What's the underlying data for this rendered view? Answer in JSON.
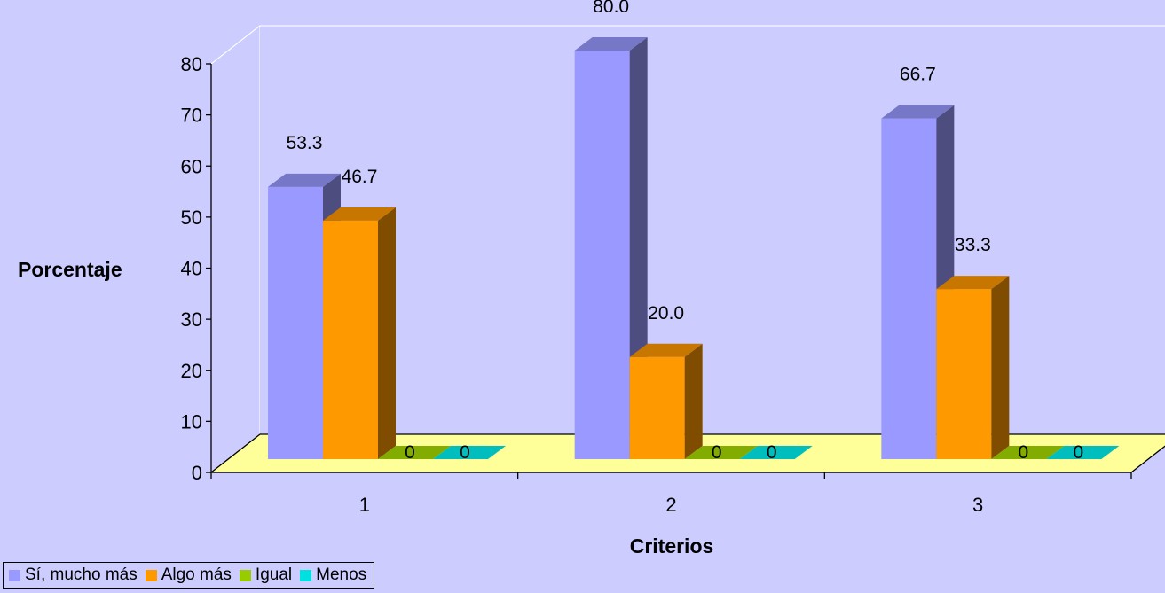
{
  "chart_data": {
    "type": "bar",
    "title": "",
    "xlabel": "Criterios",
    "ylabel": "Porcentaje",
    "ylim": [
      0,
      80
    ],
    "yticks": [
      "0",
      "10",
      "20",
      "30",
      "40",
      "50",
      "60",
      "70",
      "80"
    ],
    "categories": [
      "1",
      "2",
      "3"
    ],
    "series": [
      {
        "name": "Sí, mucho más",
        "values": [
          53.3,
          80.0,
          66.7
        ],
        "labels": [
          "53.3",
          "80.0",
          "66.7"
        ],
        "color": "#9999ff"
      },
      {
        "name": "Algo más",
        "values": [
          46.7,
          20.0,
          33.3
        ],
        "labels": [
          "46.7",
          "20.0",
          "33.3"
        ],
        "color": "#ff9900"
      },
      {
        "name": "Igual",
        "values": [
          0,
          0,
          0
        ],
        "labels": [
          "0",
          "0",
          "0"
        ],
        "color": "#99cc00"
      },
      {
        "name": "Menos",
        "values": [
          0,
          0,
          0
        ],
        "labels": [
          "0",
          "0",
          "0"
        ],
        "color": "#00e0e0"
      }
    ],
    "grid": false,
    "legend_position": "bottom-left",
    "style": "3d-column",
    "colors": {
      "background": "#ccccff",
      "floor": "#ffff99",
      "floor_edge": "#000000"
    }
  }
}
